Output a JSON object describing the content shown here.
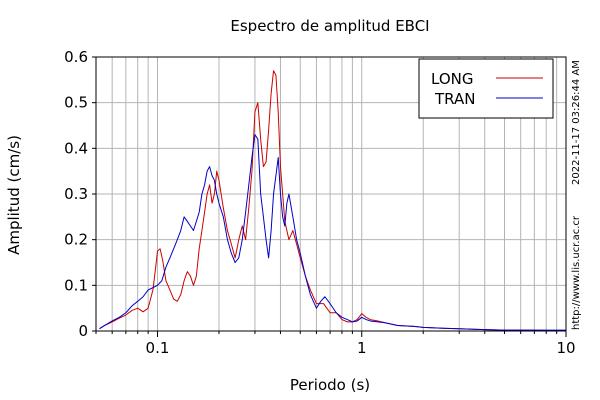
{
  "chart_data": {
    "type": "line",
    "title": "Espectro de amplitud EBCI",
    "xlabel": "Periodo (s)",
    "ylabel": "Amplitud (cm/s)",
    "xscale": "log",
    "xlim": [
      0.05,
      10
    ],
    "ylim": [
      0,
      0.6
    ],
    "x_ticks": [
      {
        "value": 0.1,
        "label": "0.1"
      },
      {
        "value": 1,
        "label": "1"
      },
      {
        "value": 10,
        "label": "10"
      }
    ],
    "y_ticks": [
      {
        "value": 0,
        "label": "0"
      },
      {
        "value": 0.1,
        "label": "0.1"
      },
      {
        "value": 0.2,
        "label": "0.2"
      },
      {
        "value": 0.3,
        "label": "0.3"
      },
      {
        "value": 0.4,
        "label": "0.4"
      },
      {
        "value": 0.5,
        "label": "0.5"
      },
      {
        "value": 0.6,
        "label": "0.6"
      }
    ],
    "grid": true,
    "legend_position": "top-right",
    "series": [
      {
        "name": "LONG",
        "color": "#cc0000",
        "points": [
          [
            0.052,
            0.005
          ],
          [
            0.055,
            0.012
          ],
          [
            0.06,
            0.02
          ],
          [
            0.065,
            0.028
          ],
          [
            0.07,
            0.035
          ],
          [
            0.075,
            0.045
          ],
          [
            0.08,
            0.05
          ],
          [
            0.085,
            0.042
          ],
          [
            0.09,
            0.05
          ],
          [
            0.095,
            0.09
          ],
          [
            0.098,
            0.14
          ],
          [
            0.1,
            0.175
          ],
          [
            0.103,
            0.18
          ],
          [
            0.106,
            0.155
          ],
          [
            0.11,
            0.11
          ],
          [
            0.115,
            0.09
          ],
          [
            0.12,
            0.07
          ],
          [
            0.125,
            0.065
          ],
          [
            0.13,
            0.08
          ],
          [
            0.135,
            0.11
          ],
          [
            0.14,
            0.13
          ],
          [
            0.145,
            0.12
          ],
          [
            0.15,
            0.1
          ],
          [
            0.155,
            0.12
          ],
          [
            0.16,
            0.18
          ],
          [
            0.165,
            0.22
          ],
          [
            0.17,
            0.26
          ],
          [
            0.175,
            0.3
          ],
          [
            0.18,
            0.32
          ],
          [
            0.185,
            0.28
          ],
          [
            0.19,
            0.3
          ],
          [
            0.195,
            0.35
          ],
          [
            0.2,
            0.33
          ],
          [
            0.21,
            0.27
          ],
          [
            0.22,
            0.22
          ],
          [
            0.23,
            0.19
          ],
          [
            0.24,
            0.16
          ],
          [
            0.25,
            0.2
          ],
          [
            0.26,
            0.23
          ],
          [
            0.27,
            0.2
          ],
          [
            0.28,
            0.27
          ],
          [
            0.29,
            0.35
          ],
          [
            0.3,
            0.48
          ],
          [
            0.31,
            0.5
          ],
          [
            0.32,
            0.42
          ],
          [
            0.33,
            0.36
          ],
          [
            0.34,
            0.37
          ],
          [
            0.35,
            0.44
          ],
          [
            0.36,
            0.52
          ],
          [
            0.37,
            0.57
          ],
          [
            0.38,
            0.56
          ],
          [
            0.39,
            0.48
          ],
          [
            0.4,
            0.36
          ],
          [
            0.41,
            0.3
          ],
          [
            0.42,
            0.24
          ],
          [
            0.44,
            0.2
          ],
          [
            0.46,
            0.22
          ],
          [
            0.48,
            0.19
          ],
          [
            0.5,
            0.16
          ],
          [
            0.53,
            0.12
          ],
          [
            0.56,
            0.09
          ],
          [
            0.6,
            0.06
          ],
          [
            0.65,
            0.06
          ],
          [
            0.7,
            0.04
          ],
          [
            0.75,
            0.04
          ],
          [
            0.8,
            0.025
          ],
          [
            0.85,
            0.02
          ],
          [
            0.9,
            0.02
          ],
          [
            0.95,
            0.025
          ],
          [
            1.0,
            0.038
          ],
          [
            1.05,
            0.03
          ],
          [
            1.1,
            0.025
          ],
          [
            1.2,
            0.022
          ],
          [
            1.3,
            0.018
          ],
          [
            1.5,
            0.012
          ],
          [
            1.8,
            0.01
          ],
          [
            2.0,
            0.008
          ],
          [
            2.5,
            0.006
          ],
          [
            3.0,
            0.005
          ],
          [
            4.0,
            0.003
          ],
          [
            5.0,
            0.002
          ],
          [
            6.0,
            0.002
          ],
          [
            8.0,
            0.001
          ],
          [
            10.0,
            0.001
          ]
        ]
      },
      {
        "name": "TRAN",
        "color": "#0000cc",
        "points": [
          [
            0.052,
            0.005
          ],
          [
            0.055,
            0.012
          ],
          [
            0.06,
            0.022
          ],
          [
            0.065,
            0.03
          ],
          [
            0.07,
            0.04
          ],
          [
            0.075,
            0.055
          ],
          [
            0.08,
            0.065
          ],
          [
            0.085,
            0.075
          ],
          [
            0.09,
            0.09
          ],
          [
            0.095,
            0.095
          ],
          [
            0.1,
            0.1
          ],
          [
            0.105,
            0.11
          ],
          [
            0.11,
            0.14
          ],
          [
            0.115,
            0.16
          ],
          [
            0.12,
            0.18
          ],
          [
            0.125,
            0.2
          ],
          [
            0.13,
            0.22
          ],
          [
            0.135,
            0.25
          ],
          [
            0.14,
            0.24
          ],
          [
            0.145,
            0.23
          ],
          [
            0.15,
            0.22
          ],
          [
            0.155,
            0.24
          ],
          [
            0.16,
            0.26
          ],
          [
            0.165,
            0.3
          ],
          [
            0.17,
            0.32
          ],
          [
            0.175,
            0.35
          ],
          [
            0.18,
            0.36
          ],
          [
            0.185,
            0.34
          ],
          [
            0.19,
            0.33
          ],
          [
            0.195,
            0.3
          ],
          [
            0.2,
            0.28
          ],
          [
            0.21,
            0.25
          ],
          [
            0.22,
            0.2
          ],
          [
            0.23,
            0.17
          ],
          [
            0.24,
            0.15
          ],
          [
            0.25,
            0.16
          ],
          [
            0.26,
            0.2
          ],
          [
            0.27,
            0.26
          ],
          [
            0.28,
            0.32
          ],
          [
            0.29,
            0.38
          ],
          [
            0.3,
            0.43
          ],
          [
            0.31,
            0.42
          ],
          [
            0.32,
            0.3
          ],
          [
            0.33,
            0.25
          ],
          [
            0.34,
            0.2
          ],
          [
            0.35,
            0.16
          ],
          [
            0.36,
            0.22
          ],
          [
            0.37,
            0.3
          ],
          [
            0.38,
            0.34
          ],
          [
            0.39,
            0.38
          ],
          [
            0.4,
            0.3
          ],
          [
            0.41,
            0.25
          ],
          [
            0.42,
            0.23
          ],
          [
            0.43,
            0.28
          ],
          [
            0.44,
            0.3
          ],
          [
            0.46,
            0.25
          ],
          [
            0.48,
            0.2
          ],
          [
            0.5,
            0.17
          ],
          [
            0.53,
            0.12
          ],
          [
            0.56,
            0.08
          ],
          [
            0.6,
            0.05
          ],
          [
            0.63,
            0.065
          ],
          [
            0.66,
            0.075
          ],
          [
            0.7,
            0.06
          ],
          [
            0.75,
            0.04
          ],
          [
            0.8,
            0.03
          ],
          [
            0.85,
            0.025
          ],
          [
            0.9,
            0.02
          ],
          [
            0.95,
            0.022
          ],
          [
            1.0,
            0.03
          ],
          [
            1.05,
            0.025
          ],
          [
            1.1,
            0.022
          ],
          [
            1.2,
            0.02
          ],
          [
            1.3,
            0.018
          ],
          [
            1.5,
            0.012
          ],
          [
            1.8,
            0.01
          ],
          [
            2.0,
            0.008
          ],
          [
            2.5,
            0.006
          ],
          [
            3.0,
            0.005
          ],
          [
            4.0,
            0.003
          ],
          [
            5.0,
            0.002
          ],
          [
            6.0,
            0.002
          ],
          [
            8.0,
            0.002
          ],
          [
            10.0,
            0.002
          ]
        ]
      }
    ]
  },
  "side_text": {
    "timestamp": "2022-11-17 03:26:44 AM",
    "url": "http://www.lis.ucr.ac.cr"
  }
}
